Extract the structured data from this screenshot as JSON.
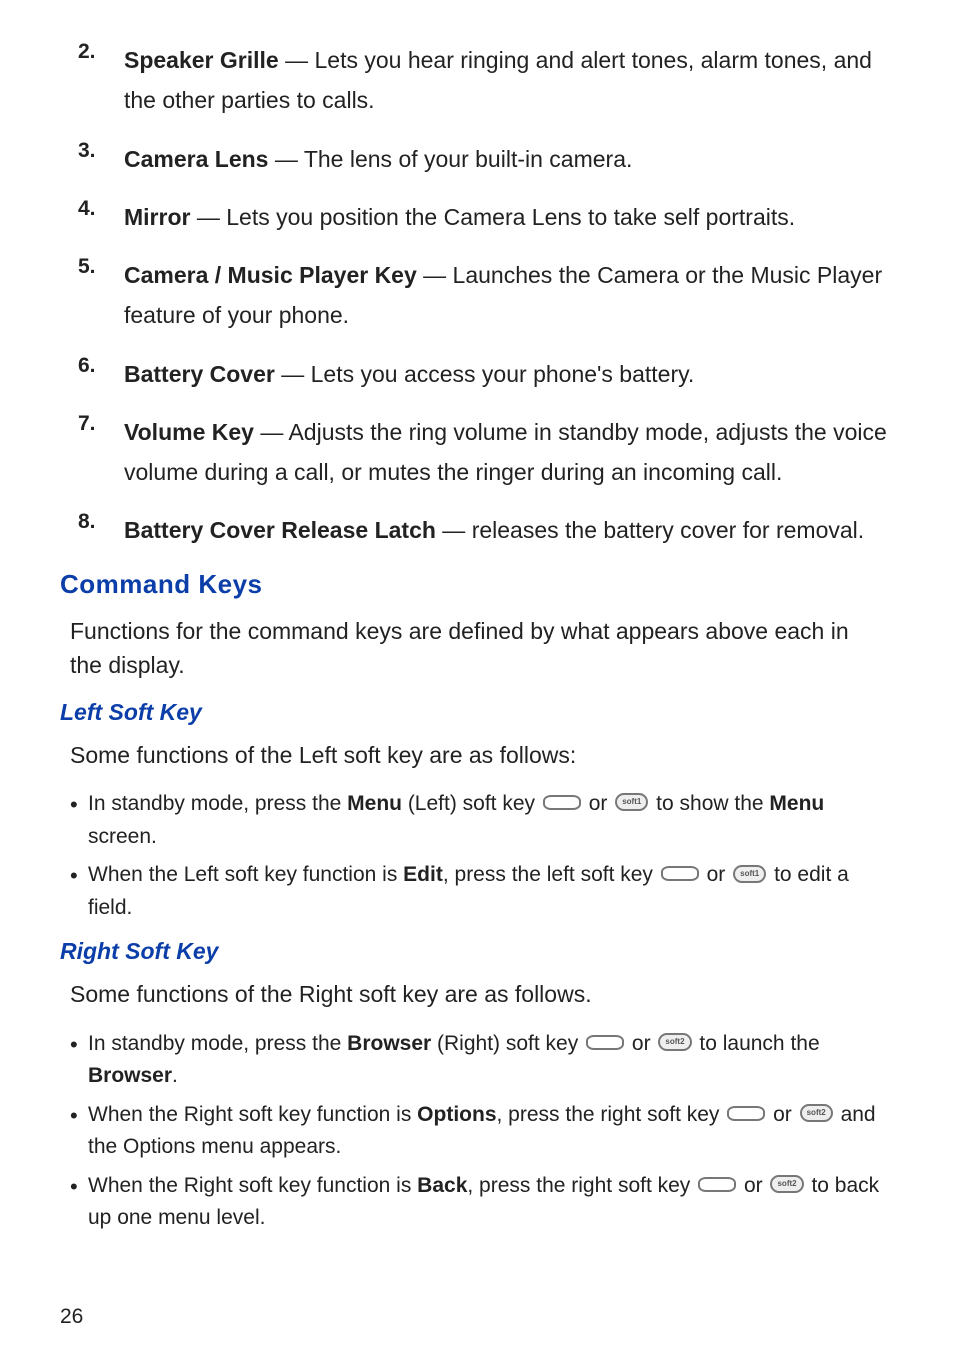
{
  "colors": {
    "heading_blue": "#0b3ea8",
    "text": "#222222",
    "key_border": "#777777",
    "key_fill": "#eeeeee",
    "background": "#ffffff"
  },
  "typography": {
    "body_family": "Arial Narrow",
    "heading_family": "Arial",
    "body_size_pt": 17,
    "bullet_size_pt": 16,
    "h1_size_pt": 20,
    "h2_size_pt": 17
  },
  "numbered_items": [
    {
      "num": "2.",
      "lead": "Speaker Grille",
      "rest": " — Lets you hear ringing and alert tones, alarm tones, and the other parties to calls."
    },
    {
      "num": "3.",
      "lead": "Camera Lens",
      "rest": " — The lens of your built-in camera."
    },
    {
      "num": "4.",
      "lead": "Mirror",
      "rest": " — Lets you position the Camera Lens to take self portraits."
    },
    {
      "num": "5.",
      "lead": "Camera / Music Player Key",
      "rest": " — Launches the Camera or the Music Player feature of your phone."
    },
    {
      "num": "6.",
      "lead": "Battery Cover",
      "rest": " — Lets you access your phone's battery."
    },
    {
      "num": "7.",
      "lead": "Volume Key",
      "rest": " — Adjusts the ring volume in standby mode, adjusts the voice volume during a call, or mutes the ringer during an incoming call."
    },
    {
      "num": "8.",
      "lead": "Battery Cover Release Latch",
      "rest": " — releases the battery cover for removal."
    }
  ],
  "section_command_keys": {
    "title": "Command Keys",
    "intro": "Functions for the command keys are defined by what appears above each in the display."
  },
  "left_soft_key": {
    "title": "Left Soft Key",
    "intro": "Some functions of the Left soft key are as follows:",
    "pill_label": "soft1",
    "bullets": [
      {
        "pre1": "In standby mode, press the ",
        "b1": "Menu",
        "mid1": " (Left) soft key ",
        "or": " or ",
        "post": " to show the ",
        "b2": "Menu",
        "tail": " screen."
      },
      {
        "pre1": "When the Left soft key function is ",
        "b1": "Edit",
        "mid1": ", press the left soft key ",
        "or": " or ",
        "post": " to edit a field.",
        "b2": "",
        "tail": ""
      }
    ]
  },
  "right_soft_key": {
    "title": "Right Soft Key",
    "intro": "Some functions of the Right soft key are as follows.",
    "pill_label": "soft2",
    "bullets": [
      {
        "pre1": "In standby mode, press the ",
        "b1": "Browser",
        "mid1": " (Right) soft key ",
        "or": " or ",
        "post": " to launch the ",
        "b2": "Browser",
        "tail": "."
      },
      {
        "pre1": "When the Right soft key function is ",
        "b1": "Options",
        "mid1": ", press the right soft key ",
        "or": " or ",
        "post": " and the Options menu appears.",
        "b2": "",
        "tail": ""
      },
      {
        "pre1": "When the Right soft key function is ",
        "b1": "Back",
        "mid1": ", press the right soft key ",
        "or": " or ",
        "post": " to back up one menu level.",
        "b2": "",
        "tail": ""
      }
    ]
  },
  "page_number": "26"
}
